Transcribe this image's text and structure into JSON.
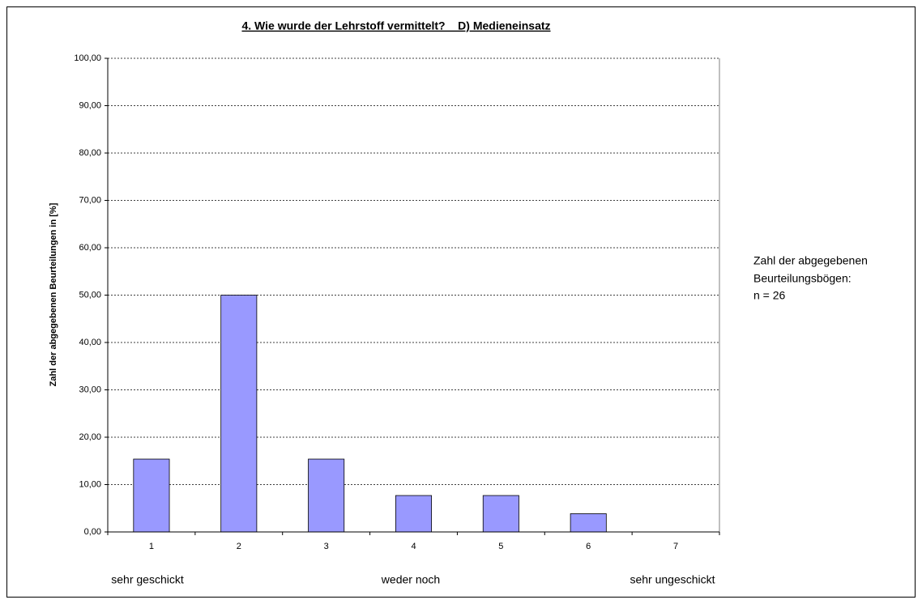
{
  "chart_data": {
    "type": "bar",
    "title": "4. Wie wurde der Lehrstoff vermittelt?    D) Medieneinsatz",
    "y_label": "Zahl der abgegebenen Beurteilungen in [%]",
    "categories": [
      "1",
      "2",
      "3",
      "4",
      "5",
      "6",
      "7"
    ],
    "values": [
      15.38,
      50,
      15.38,
      7.69,
      7.69,
      3.85,
      0
    ],
    "color": "#9999ff",
    "ylim": [
      0,
      100
    ],
    "yticks": [
      {
        "value": 0,
        "label": "0,00"
      },
      {
        "value": 10,
        "label": "10,00"
      },
      {
        "value": 20,
        "label": "20,00"
      },
      {
        "value": 30,
        "label": "30,00"
      },
      {
        "value": 40,
        "label": "40,00"
      },
      {
        "value": 50,
        "label": "50,00"
      },
      {
        "value": 60,
        "label": "60,00"
      },
      {
        "value": 70,
        "label": "70,00"
      },
      {
        "value": 80,
        "label": "80,00"
      },
      {
        "value": 90,
        "label": "90,00"
      },
      {
        "value": 100,
        "label": "100,00"
      }
    ],
    "grid": true,
    "scale_annotations": [
      "sehr geschickt",
      "weder noch",
      "sehr ungeschickt"
    ],
    "note": [
      "Zahl der abgegebenen",
      "Beurteilungsbögen:",
      "n = 26"
    ]
  }
}
